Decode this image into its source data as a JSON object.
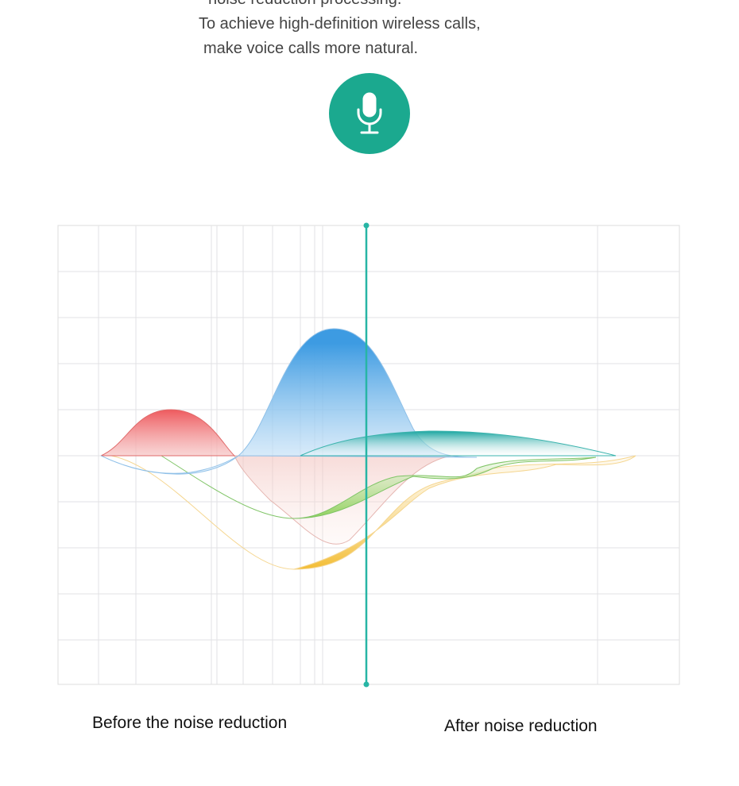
{
  "intro": {
    "line0": "noise reduction processing.",
    "line1": "To achieve high-definition wireless calls,",
    "line2": "make voice calls more natural."
  },
  "icon": {
    "name": "microphone-icon",
    "color": "#1ba98f"
  },
  "diagram": {
    "divider_color": "#27b5a5",
    "before_label": "Before the noise reduction",
    "after_label": "After noise reduction"
  }
}
